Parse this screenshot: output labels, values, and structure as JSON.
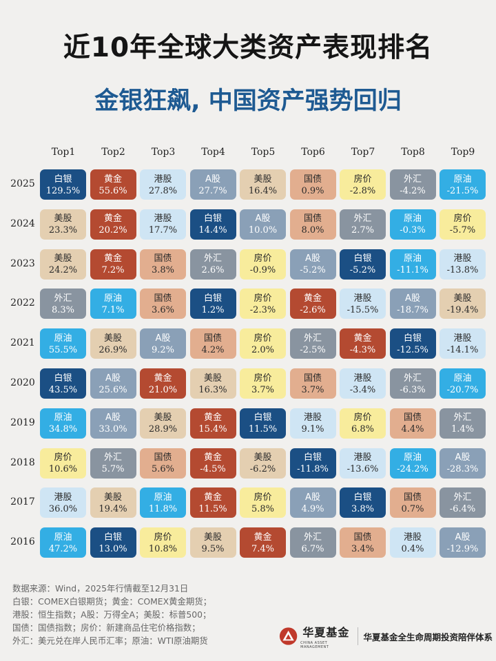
{
  "title": "近10年全球大类资产表现排名",
  "subtitle": "金银狂飙, 中国资产强势回归",
  "chart_data": {
    "type": "table",
    "columns": [
      "Top1",
      "Top2",
      "Top3",
      "Top4",
      "Top5",
      "Top6",
      "Top7",
      "Top8",
      "Top9"
    ],
    "rows": [
      {
        "year": "2025",
        "cells": [
          {
            "asset": "白银",
            "value": "129.5%"
          },
          {
            "asset": "黄金",
            "value": "55.6%"
          },
          {
            "asset": "港股",
            "value": "27.8%"
          },
          {
            "asset": "A股",
            "value": "27.7%"
          },
          {
            "asset": "美股",
            "value": "16.4%"
          },
          {
            "asset": "国债",
            "value": "0.9%"
          },
          {
            "asset": "房价",
            "value": "-2.8%"
          },
          {
            "asset": "外汇",
            "value": "-4.2%"
          },
          {
            "asset": "原油",
            "value": "-21.5%"
          }
        ]
      },
      {
        "year": "2024",
        "cells": [
          {
            "asset": "美股",
            "value": "23.3%"
          },
          {
            "asset": "黄金",
            "value": "20.2%"
          },
          {
            "asset": "港股",
            "value": "17.7%"
          },
          {
            "asset": "白银",
            "value": "14.4%"
          },
          {
            "asset": "A股",
            "value": "10.0%"
          },
          {
            "asset": "国债",
            "value": "8.0%"
          },
          {
            "asset": "外汇",
            "value": "2.7%"
          },
          {
            "asset": "原油",
            "value": "-0.3%"
          },
          {
            "asset": "房价",
            "value": "-5.7%"
          }
        ]
      },
      {
        "year": "2023",
        "cells": [
          {
            "asset": "美股",
            "value": "24.2%"
          },
          {
            "asset": "黄金",
            "value": "7.2%"
          },
          {
            "asset": "国债",
            "value": "3.8%"
          },
          {
            "asset": "外汇",
            "value": "2.6%"
          },
          {
            "asset": "房价",
            "value": "-0.9%"
          },
          {
            "asset": "A股",
            "value": "-5.2%"
          },
          {
            "asset": "白银",
            "value": "-5.2%"
          },
          {
            "asset": "原油",
            "value": "-11.1%"
          },
          {
            "asset": "港股",
            "value": "-13.8%"
          }
        ]
      },
      {
        "year": "2022",
        "cells": [
          {
            "asset": "外汇",
            "value": "8.3%"
          },
          {
            "asset": "原油",
            "value": "7.1%"
          },
          {
            "asset": "国债",
            "value": "3.6%"
          },
          {
            "asset": "白银",
            "value": "1.2%"
          },
          {
            "asset": "房价",
            "value": "-2.3%"
          },
          {
            "asset": "黄金",
            "value": "-2.6%"
          },
          {
            "asset": "港股",
            "value": "-15.5%"
          },
          {
            "asset": "A股",
            "value": "-18.7%"
          },
          {
            "asset": "美股",
            "value": "-19.4%"
          }
        ]
      },
      {
        "year": "2021",
        "cells": [
          {
            "asset": "原油",
            "value": "55.5%"
          },
          {
            "asset": "美股",
            "value": "26.9%"
          },
          {
            "asset": "A股",
            "value": "9.2%"
          },
          {
            "asset": "国债",
            "value": "4.2%"
          },
          {
            "asset": "房价",
            "value": "2.0%"
          },
          {
            "asset": "外汇",
            "value": "-2.5%"
          },
          {
            "asset": "黄金",
            "value": "-4.3%"
          },
          {
            "asset": "白银",
            "value": "-12.5%"
          },
          {
            "asset": "港股",
            "value": "-14.1%"
          }
        ]
      },
      {
        "year": "2020",
        "cells": [
          {
            "asset": "白银",
            "value": "43.5%"
          },
          {
            "asset": "A股",
            "value": "25.6%"
          },
          {
            "asset": "黄金",
            "value": "21.0%"
          },
          {
            "asset": "美股",
            "value": "16.3%"
          },
          {
            "asset": "房价",
            "value": "3.7%"
          },
          {
            "asset": "国债",
            "value": "3.7%"
          },
          {
            "asset": "港股",
            "value": "-3.4%"
          },
          {
            "asset": "外汇",
            "value": "-6.3%"
          },
          {
            "asset": "原油",
            "value": "-20.7%"
          }
        ]
      },
      {
        "year": "2019",
        "cells": [
          {
            "asset": "原油",
            "value": "34.8%"
          },
          {
            "asset": "A股",
            "value": "33.0%"
          },
          {
            "asset": "美股",
            "value": "28.9%"
          },
          {
            "asset": "黄金",
            "value": "15.4%"
          },
          {
            "asset": "白银",
            "value": "11.5%"
          },
          {
            "asset": "港股",
            "value": "9.1%"
          },
          {
            "asset": "房价",
            "value": "6.8%"
          },
          {
            "asset": "国债",
            "value": "4.4%"
          },
          {
            "asset": "外汇",
            "value": "1.4%"
          }
        ]
      },
      {
        "year": "2018",
        "cells": [
          {
            "asset": "房价",
            "value": "10.6%"
          },
          {
            "asset": "外汇",
            "value": "5.7%"
          },
          {
            "asset": "国债",
            "value": "5.6%"
          },
          {
            "asset": "黄金",
            "value": "-4.5%"
          },
          {
            "asset": "美股",
            "value": "-6.2%"
          },
          {
            "asset": "白银",
            "value": "-11.8%"
          },
          {
            "asset": "港股",
            "value": "-13.6%"
          },
          {
            "asset": "原油",
            "value": "-24.2%"
          },
          {
            "asset": "A股",
            "value": "-28.3%"
          }
        ]
      },
      {
        "year": "2017",
        "cells": [
          {
            "asset": "港股",
            "value": "36.0%"
          },
          {
            "asset": "美股",
            "value": "19.4%"
          },
          {
            "asset": "原油",
            "value": "11.8%"
          },
          {
            "asset": "黄金",
            "value": "11.5%"
          },
          {
            "asset": "房价",
            "value": "5.8%"
          },
          {
            "asset": "A股",
            "value": "4.9%"
          },
          {
            "asset": "白银",
            "value": "3.8%"
          },
          {
            "asset": "国债",
            "value": "0.7%"
          },
          {
            "asset": "外汇",
            "value": "-6.4%"
          }
        ]
      },
      {
        "year": "2016",
        "cells": [
          {
            "asset": "原油",
            "value": "47.2%"
          },
          {
            "asset": "白银",
            "value": "13.0%"
          },
          {
            "asset": "房价",
            "value": "10.8%"
          },
          {
            "asset": "美股",
            "value": "9.5%"
          },
          {
            "asset": "黄金",
            "value": "7.4%"
          },
          {
            "asset": "外汇",
            "value": "6.7%"
          },
          {
            "asset": "国债",
            "value": "3.4%"
          },
          {
            "asset": "港股",
            "value": "0.4%"
          },
          {
            "asset": "A股",
            "value": "-12.9%"
          }
        ]
      }
    ],
    "asset_colors": {
      "白银": {
        "bg": "#1b4f84",
        "fg": "#ffffff"
      },
      "黄金": {
        "bg": "#b44a31",
        "fg": "#ffffff"
      },
      "港股": {
        "bg": "#cfe5f4",
        "fg": "#2a2a2a"
      },
      "A股": {
        "bg": "#8aa0b7",
        "fg": "#ffffff"
      },
      "美股": {
        "bg": "#e4cfb1",
        "fg": "#2a2a2a"
      },
      "国债": {
        "bg": "#e2ae8f",
        "fg": "#2a2a2a"
      },
      "房价": {
        "bg": "#f8ec9c",
        "fg": "#2a2a2a"
      },
      "外汇": {
        "bg": "#8994a0",
        "fg": "#ffffff"
      },
      "原油": {
        "bg": "#33aee4",
        "fg": "#ffffff"
      }
    }
  },
  "footer": {
    "lines": [
      "数据来源：Wind，2025年行情截至12月31日",
      "白银：COMEX白银期货；黄金：COMEX黄金期货；",
      "港股：恒生指数；A股：万得全A；美股：标普500；",
      "国债：国债指数；房价：新建商品住宅价格指数；",
      "外汇：美元兑在岸人民币汇率；原油：WTI原油期货"
    ]
  },
  "brand": {
    "logo_cn": "华夏基金",
    "logo_en": "CHINA ASSET MANAGEMENT",
    "slogan": "华夏基金全生命周期投资陪伴体系"
  }
}
